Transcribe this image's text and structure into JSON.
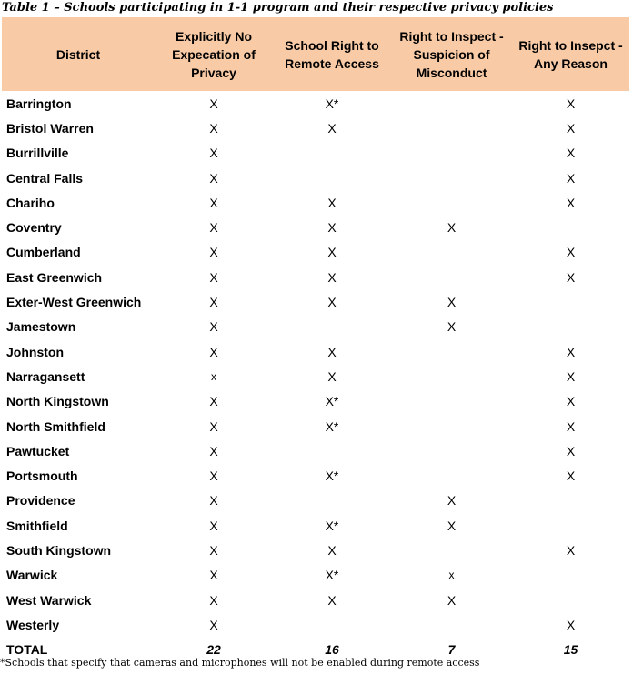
{
  "caption": "Table 1 – Schools participating in 1-1 program and their respective privacy policies",
  "header_color": "#f8caa5",
  "columns": [
    "District",
    "Explicitly No Expecation of Privacy",
    "School Right to Remote Access",
    "Right to Inspect - Suspicion of Misconduct",
    "Right to Insepct - Any Reason"
  ],
  "rows": [
    {
      "district": "Barrington",
      "c1": "X",
      "c2": "X*",
      "c3": "",
      "c4": "X"
    },
    {
      "district": "Bristol Warren",
      "c1": "X",
      "c2": "X",
      "c3": "",
      "c4": "X"
    },
    {
      "district": "Burrillville",
      "c1": "X",
      "c2": "",
      "c3": "",
      "c4": "X"
    },
    {
      "district": "Central Falls",
      "c1": "X",
      "c2": "",
      "c3": "",
      "c4": "X"
    },
    {
      "district": "Chariho",
      "c1": "X",
      "c2": "X",
      "c3": "",
      "c4": "X"
    },
    {
      "district": "Coventry",
      "c1": "X",
      "c2": "X",
      "c3": "X",
      "c4": ""
    },
    {
      "district": "Cumberland",
      "c1": "X",
      "c2": "X",
      "c3": "",
      "c4": "X"
    },
    {
      "district": "East Greenwich",
      "c1": "X",
      "c2": "X",
      "c3": "",
      "c4": "X"
    },
    {
      "district": "Exter-West Greenwich",
      "c1": "X",
      "c2": "X",
      "c3": "X",
      "c4": ""
    },
    {
      "district": "Jamestown",
      "c1": "X",
      "c2": "",
      "c3": "X",
      "c4": ""
    },
    {
      "district": "Johnston",
      "c1": "X",
      "c2": "X",
      "c3": "",
      "c4": "X"
    },
    {
      "district": "Narragansett",
      "c1": "x",
      "c2": "X",
      "c3": "",
      "c4": "X"
    },
    {
      "district": "North Kingstown",
      "c1": "X",
      "c2": "X*",
      "c3": "",
      "c4": "X"
    },
    {
      "district": "North Smithfield",
      "c1": "X",
      "c2": "X*",
      "c3": "",
      "c4": "X"
    },
    {
      "district": "Pawtucket",
      "c1": "X",
      "c2": "",
      "c3": "",
      "c4": "X"
    },
    {
      "district": "Portsmouth",
      "c1": "X",
      "c2": "X*",
      "c3": "",
      "c4": "X"
    },
    {
      "district": "Providence",
      "c1": "X",
      "c2": "",
      "c3": "X",
      "c4": ""
    },
    {
      "district": "Smithfield",
      "c1": "X",
      "c2": "X*",
      "c3": "X",
      "c4": ""
    },
    {
      "district": "South Kingstown",
      "c1": "X",
      "c2": "X",
      "c3": "",
      "c4": "X"
    },
    {
      "district": "Warwick",
      "c1": "X",
      "c2": "X*",
      "c3": "x",
      "c4": ""
    },
    {
      "district": "West Warwick",
      "c1": "X",
      "c2": "X",
      "c3": "X",
      "c4": ""
    },
    {
      "district": "Westerly",
      "c1": "X",
      "c2": "",
      "c3": "",
      "c4": "X"
    }
  ],
  "total": {
    "label": "TOTAL",
    "c1": "22",
    "c2": "16",
    "c3": "7",
    "c4": "15"
  },
  "footnote": "*Schools that specify that cameras and microphones will not be enabled during remote access"
}
